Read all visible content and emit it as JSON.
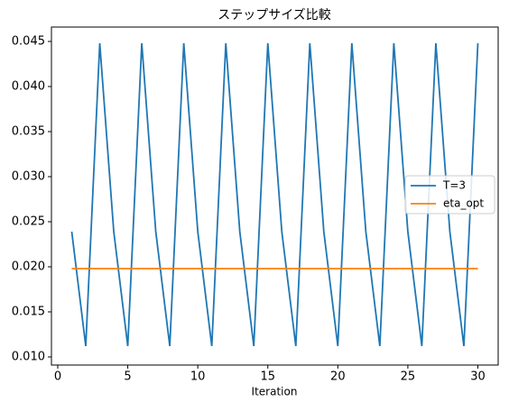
{
  "chart_data": {
    "type": "line",
    "title": "ステップサイズ比較",
    "xlabel": "Iteration",
    "x": [
      1,
      2,
      3,
      4,
      5,
      6,
      7,
      8,
      9,
      10,
      11,
      12,
      13,
      14,
      15,
      16,
      17,
      18,
      19,
      20,
      21,
      22,
      23,
      24,
      25,
      26,
      27,
      28,
      29,
      30
    ],
    "series": [
      {
        "name": "T=3",
        "color": "#1f77b4",
        "values": [
          0.0239,
          0.0112,
          0.0448,
          0.0239,
          0.0112,
          0.0448,
          0.0239,
          0.0112,
          0.0448,
          0.0239,
          0.0112,
          0.0448,
          0.0239,
          0.0112,
          0.0448,
          0.0239,
          0.0112,
          0.0448,
          0.0239,
          0.0112,
          0.0448,
          0.0239,
          0.0112,
          0.0448,
          0.0239,
          0.0112,
          0.0448,
          0.0239,
          0.0112,
          0.0448
        ]
      },
      {
        "name": "eta_opt",
        "color": "#ff7f0e",
        "values": [
          0.0198,
          0.0198,
          0.0198,
          0.0198,
          0.0198,
          0.0198,
          0.0198,
          0.0198,
          0.0198,
          0.0198,
          0.0198,
          0.0198,
          0.0198,
          0.0198,
          0.0198,
          0.0198,
          0.0198,
          0.0198,
          0.0198,
          0.0198,
          0.0198,
          0.0198,
          0.0198,
          0.0198,
          0.0198,
          0.0198,
          0.0198,
          0.0198,
          0.0198,
          0.0198
        ]
      }
    ],
    "xlim": [
      -0.45,
      31.45
    ],
    "xticks": [
      0,
      5,
      10,
      15,
      20,
      25,
      30
    ],
    "ylim": [
      0.0091,
      0.0466
    ],
    "yticks": [
      {
        "value": 0.01,
        "label": "0.010"
      },
      {
        "value": 0.015,
        "label": "0.015"
      },
      {
        "value": 0.02,
        "label": "0.020"
      },
      {
        "value": 0.025,
        "label": "0.025"
      },
      {
        "value": 0.03,
        "label": "0.030"
      },
      {
        "value": 0.035,
        "label": "0.035"
      },
      {
        "value": 0.04,
        "label": "0.040"
      },
      {
        "value": 0.045,
        "label": "0.045"
      }
    ],
    "legend": "right"
  }
}
